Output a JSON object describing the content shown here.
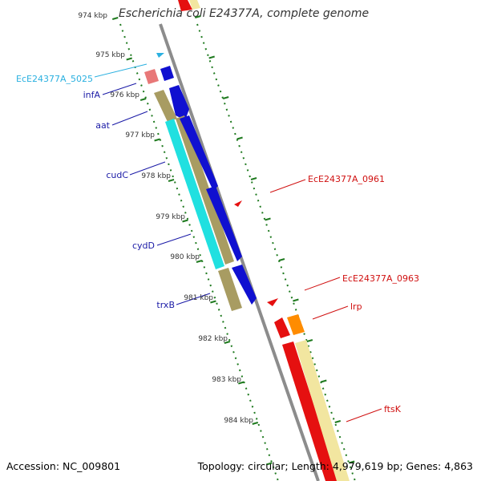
{
  "title": "Escherichia coli E24377A, complete genome",
  "footer": {
    "accession": "Accession: NC_009801",
    "summary": "Topology: circular; Length: 4,979,619 bp; Genes: 4,863"
  },
  "colors": {
    "backbone": "#8c8c8c",
    "tick": "#1f7a1f",
    "label_blue": "#1a1aa6",
    "label_red": "#d01010",
    "label_cyan": "#2ab0e0",
    "gene_blue": "#1010d0",
    "gene_olive": "#a89c62",
    "gene_cyan": "#20e0e0",
    "gene_red": "#e51010",
    "gene_orange": "#ff8c00",
    "gene_pink": "#e87878",
    "gene_yellow": "#f2e6a0"
  },
  "kbp_labels": [
    "974 kbp",
    "975 kbp",
    "976 kbp",
    "977 kbp",
    "978 kbp",
    "979 kbp",
    "980 kbp",
    "981 kbp",
    "982 kbp",
    "983 kbp",
    "984 kbp"
  ],
  "gene_labels": {
    "left": [
      "EcE24377A_5025",
      "infA",
      "aat",
      "cudC",
      "cydD",
      "trxB"
    ],
    "right": [
      "EcE24377A_0961",
      "EcE24377A_0963",
      "lrp",
      "ftsK"
    ]
  }
}
